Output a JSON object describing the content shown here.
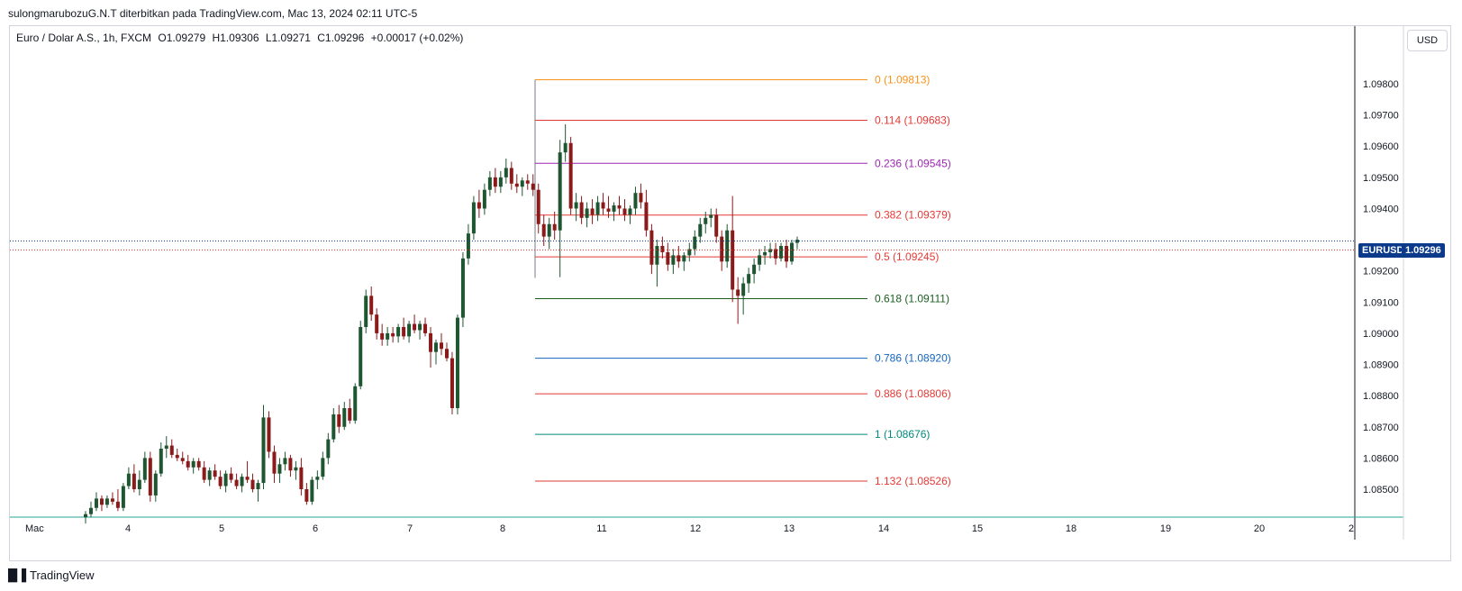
{
  "header": {
    "text": "sulongmarubozuG.N.T diterbitkan pada TradingView.com, Mac 13, 2024 02:11 UTC-5"
  },
  "legend": {
    "symbol": "Euro / Dolar A.S., 1h, FXCM",
    "open": "O1.09279",
    "high": "H1.09306",
    "low": "L1.09271",
    "close": "C1.09296",
    "change": "+0.00017 (+0.02%)"
  },
  "currency": "USD",
  "price_tag": {
    "name": "EURUSD",
    "price": "1.09296"
  },
  "footer": {
    "logo_mark": "█▐",
    "logo_text": "TradingView"
  },
  "colors": {
    "bull": "#1e5631",
    "bear": "#8b1a1a",
    "axis": "#131722",
    "frame": "#d1d4dc",
    "accent": "#0b3a8a"
  },
  "chart_data": {
    "type": "candlestick",
    "title": "",
    "xlabel": "",
    "ylabel": "",
    "ylim": [
      1.0842,
      1.0992
    ],
    "y_ticks": [
      "1.09800",
      "1.09700",
      "1.09600",
      "1.09500",
      "1.09400",
      "1.09200",
      "1.09100",
      "1.09000",
      "1.08900",
      "1.08800",
      "1.08700",
      "1.08600",
      "1.08500"
    ],
    "y_tick_values": [
      1.098,
      1.097,
      1.096,
      1.095,
      1.094,
      1.092,
      1.091,
      1.09,
      1.089,
      1.088,
      1.087,
      1.086,
      1.085
    ],
    "x_ticks": [
      "Mac",
      "4",
      "5",
      "6",
      "7",
      "8",
      "11",
      "12",
      "13",
      "14",
      "15",
      "18",
      "19",
      "20",
      "2"
    ],
    "current_price": 1.09296,
    "fibonacci": {
      "levels": [
        {
          "label": "0 (1.09813)",
          "value": 1.09813,
          "color": "#f7931a"
        },
        {
          "label": "0.114 (1.09683)",
          "value": 1.09683,
          "color": "#e53935"
        },
        {
          "label": "0.236 (1.09545)",
          "value": 1.09545,
          "color": "#9c27b0"
        },
        {
          "label": "0.382 (1.09379)",
          "value": 1.09379,
          "color": "#e53935"
        },
        {
          "label": "0.5 (1.09245)",
          "value": 1.09245,
          "color": "#e53935"
        },
        {
          "label": "0.618 (1.09111)",
          "value": 1.09111,
          "color": "#1b5e20"
        },
        {
          "label": "0.786 (1.08920)",
          "value": 1.0892,
          "color": "#1565c0"
        },
        {
          "label": "0.886 (1.08806)",
          "value": 1.08806,
          "color": "#e53935"
        },
        {
          "label": "1 (1.08676)",
          "value": 1.08676,
          "color": "#00897b"
        },
        {
          "label": "1.132 (1.08526)",
          "value": 1.08526,
          "color": "#e53935"
        }
      ]
    },
    "candles": [
      [
        1.0841,
        1.0843,
        1.0839,
        1.0842
      ],
      [
        1.0842,
        1.0846,
        1.0841,
        1.0844
      ],
      [
        1.0844,
        1.0849,
        1.0843,
        1.0847
      ],
      [
        1.0847,
        1.0848,
        1.0843,
        1.0845
      ],
      [
        1.0845,
        1.0848,
        1.0844,
        1.0847
      ],
      [
        1.0847,
        1.0849,
        1.0845,
        1.0846
      ],
      [
        1.0846,
        1.085,
        1.0843,
        1.0844
      ],
      [
        1.0844,
        1.0852,
        1.0843,
        1.0851
      ],
      [
        1.0851,
        1.0857,
        1.085,
        1.0855
      ],
      [
        1.0855,
        1.0858,
        1.0849,
        1.085
      ],
      [
        1.085,
        1.0856,
        1.0848,
        1.0853
      ],
      [
        1.0853,
        1.0862,
        1.0852,
        1.086
      ],
      [
        1.086,
        1.0862,
        1.0846,
        1.0848
      ],
      [
        1.0848,
        1.0856,
        1.0846,
        1.0855
      ],
      [
        1.0855,
        1.0865,
        1.0854,
        1.0863
      ],
      [
        1.0863,
        1.0867,
        1.086,
        1.0864
      ],
      [
        1.0864,
        1.0866,
        1.086,
        1.0861
      ],
      [
        1.0861,
        1.0863,
        1.0859,
        1.086
      ],
      [
        1.086,
        1.0862,
        1.0858,
        1.0859
      ],
      [
        1.0859,
        1.0861,
        1.0856,
        1.0857
      ],
      [
        1.0857,
        1.086,
        1.0855,
        1.0859
      ],
      [
        1.0859,
        1.086,
        1.0856,
        1.0857
      ],
      [
        1.0857,
        1.0859,
        1.0852,
        1.0853
      ],
      [
        1.0853,
        1.0857,
        1.0851,
        1.0856
      ],
      [
        1.0856,
        1.0858,
        1.0853,
        1.0854
      ],
      [
        1.0854,
        1.0856,
        1.085,
        1.0851
      ],
      [
        1.0851,
        1.0856,
        1.0849,
        1.0855
      ],
      [
        1.0855,
        1.0857,
        1.0852,
        1.0853
      ],
      [
        1.0853,
        1.0855,
        1.085,
        1.0851
      ],
      [
        1.0851,
        1.0855,
        1.0849,
        1.0854
      ],
      [
        1.0854,
        1.0859,
        1.0852,
        1.0853
      ],
      [
        1.0853,
        1.0855,
        1.0849,
        1.085
      ],
      [
        1.085,
        1.0853,
        1.0846,
        1.0852
      ],
      [
        1.0852,
        1.0877,
        1.085,
        1.0873
      ],
      [
        1.0873,
        1.0875,
        1.086,
        1.0862
      ],
      [
        1.0862,
        1.0864,
        1.0852,
        1.0855
      ],
      [
        1.0855,
        1.086,
        1.0852,
        1.0858
      ],
      [
        1.0858,
        1.0862,
        1.0856,
        1.086
      ],
      [
        1.086,
        1.0861,
        1.0854,
        1.0856
      ],
      [
        1.0856,
        1.0859,
        1.0853,
        1.0857
      ],
      [
        1.0857,
        1.086,
        1.0848,
        1.085
      ],
      [
        1.085,
        1.0852,
        1.0845,
        1.0846
      ],
      [
        1.0846,
        1.0854,
        1.0845,
        1.0853
      ],
      [
        1.0853,
        1.0856,
        1.085,
        1.0854
      ],
      [
        1.0854,
        1.0862,
        1.0853,
        1.086
      ],
      [
        1.086,
        1.0868,
        1.0858,
        1.0866
      ],
      [
        1.0866,
        1.0876,
        1.0865,
        1.0874
      ],
      [
        1.0874,
        1.0877,
        1.0868,
        1.087
      ],
      [
        1.087,
        1.0878,
        1.0869,
        1.0876
      ],
      [
        1.0876,
        1.0879,
        1.0871,
        1.0872
      ],
      [
        1.0872,
        1.0884,
        1.0871,
        1.0883
      ],
      [
        1.0883,
        1.0904,
        1.0882,
        1.0902
      ],
      [
        1.0902,
        1.0914,
        1.09,
        1.0912
      ],
      [
        1.0912,
        1.0915,
        1.0904,
        1.0906
      ],
      [
        1.0906,
        1.0908,
        1.0898,
        1.09
      ],
      [
        1.09,
        1.0903,
        1.0896,
        1.0898
      ],
      [
        1.0898,
        1.0902,
        1.0896,
        1.09
      ],
      [
        1.09,
        1.0902,
        1.0897,
        1.0899
      ],
      [
        1.0899,
        1.0903,
        1.0897,
        1.0902
      ],
      [
        1.0902,
        1.0905,
        1.0898,
        1.0899
      ],
      [
        1.0899,
        1.0904,
        1.0897,
        1.0903
      ],
      [
        1.0903,
        1.0906,
        1.09,
        1.0901
      ],
      [
        1.0901,
        1.0904,
        1.0898,
        1.0903
      ],
      [
        1.0903,
        1.0905,
        1.0899,
        1.09
      ],
      [
        1.09,
        1.0902,
        1.0889,
        1.0894
      ],
      [
        1.0894,
        1.0898,
        1.089,
        1.0897
      ],
      [
        1.0897,
        1.09,
        1.0893,
        1.0895
      ],
      [
        1.0895,
        1.0897,
        1.0891,
        1.0892
      ],
      [
        1.0892,
        1.0894,
        1.0874,
        1.0876
      ],
      [
        1.0876,
        1.0906,
        1.0874,
        1.0905
      ],
      [
        1.0905,
        1.0926,
        1.0902,
        1.0924
      ],
      [
        1.0924,
        1.0935,
        1.0922,
        1.0932
      ],
      [
        1.0932,
        1.0944,
        1.093,
        1.0942
      ],
      [
        1.0942,
        1.0946,
        1.0937,
        1.094
      ],
      [
        1.094,
        1.0948,
        1.0938,
        1.0946
      ],
      [
        1.0946,
        1.0952,
        1.0944,
        1.095
      ],
      [
        1.095,
        1.0953,
        1.0945,
        1.0947
      ],
      [
        1.0947,
        1.0952,
        1.0945,
        1.095
      ],
      [
        1.095,
        1.0956,
        1.0948,
        1.0953
      ],
      [
        1.0953,
        1.0955,
        1.0946,
        1.0948
      ],
      [
        1.0948,
        1.0951,
        1.0945,
        1.0947
      ],
      [
        1.0947,
        1.095,
        1.0944,
        1.0949
      ],
      [
        1.0949,
        1.0951,
        1.0946,
        1.0948
      ],
      [
        1.0948,
        1.0951,
        1.0944,
        1.0946
      ],
      [
        1.0946,
        1.0948,
        1.0932,
        1.0935
      ],
      [
        1.0935,
        1.0938,
        1.0928,
        1.0931
      ],
      [
        1.0931,
        1.0937,
        1.0927,
        1.0935
      ],
      [
        1.0935,
        1.0939,
        1.093,
        1.0933
      ],
      [
        1.0933,
        1.0962,
        1.0918,
        1.0958
      ],
      [
        1.0958,
        1.0967,
        1.0955,
        1.0961
      ],
      [
        1.0961,
        1.0963,
        1.0938,
        1.094
      ],
      [
        1.094,
        1.0945,
        1.0936,
        1.0942
      ],
      [
        1.0942,
        1.0944,
        1.0935,
        1.0937
      ],
      [
        1.0937,
        1.0942,
        1.0934,
        1.094
      ],
      [
        1.094,
        1.0943,
        1.0935,
        1.0938
      ],
      [
        1.0938,
        1.0944,
        1.0936,
        1.0942
      ],
      [
        1.0942,
        1.0945,
        1.0938,
        1.094
      ],
      [
        1.094,
        1.0944,
        1.0937,
        1.0939
      ],
      [
        1.0939,
        1.0942,
        1.0936,
        1.0941
      ],
      [
        1.0941,
        1.0944,
        1.0938,
        1.094
      ],
      [
        1.094,
        1.0943,
        1.0936,
        1.0938
      ],
      [
        1.0938,
        1.0941,
        1.0935,
        1.094
      ],
      [
        1.094,
        1.0947,
        1.0938,
        1.0945
      ],
      [
        1.0945,
        1.0948,
        1.094,
        1.0942
      ],
      [
        1.0942,
        1.0946,
        1.0931,
        1.0933
      ],
      [
        1.0933,
        1.0935,
        1.0919,
        1.0922
      ],
      [
        1.0922,
        1.093,
        1.0915,
        1.0928
      ],
      [
        1.0928,
        1.0931,
        1.0924,
        1.0926
      ],
      [
        1.0926,
        1.0929,
        1.092,
        1.0922
      ],
      [
        1.0922,
        1.0927,
        1.0919,
        1.0925
      ],
      [
        1.0925,
        1.0928,
        1.0921,
        1.0923
      ],
      [
        1.0923,
        1.0926,
        1.092,
        1.0925
      ],
      [
        1.0925,
        1.0929,
        1.0923,
        1.0927
      ],
      [
        1.0927,
        1.0933,
        1.0925,
        1.0931
      ],
      [
        1.0931,
        1.0937,
        1.0929,
        1.0935
      ],
      [
        1.0935,
        1.0939,
        1.0932,
        1.0937
      ],
      [
        1.0937,
        1.094,
        1.0934,
        1.0938
      ],
      [
        1.0938,
        1.094,
        1.0929,
        1.0931
      ],
      [
        1.0931,
        1.0933,
        1.092,
        1.0923
      ],
      [
        1.0923,
        1.0935,
        1.0921,
        1.0933
      ],
      [
        1.0933,
        1.0944,
        1.091,
        1.0914
      ],
      [
        1.0914,
        1.0918,
        1.0903,
        1.0912
      ],
      [
        1.0912,
        1.0918,
        1.0906,
        1.0916
      ],
      [
        1.0916,
        1.0921,
        1.0913,
        1.0919
      ],
      [
        1.0919,
        1.0924,
        1.0916,
        1.0922
      ],
      [
        1.0922,
        1.0927,
        1.092,
        1.0925
      ],
      [
        1.0925,
        1.0928,
        1.0922,
        1.0926
      ],
      [
        1.0926,
        1.0929,
        1.0924,
        1.0927
      ],
      [
        1.0927,
        1.0929,
        1.0922,
        1.0924
      ],
      [
        1.0924,
        1.0929,
        1.0923,
        1.0928
      ],
      [
        1.0928,
        1.093,
        1.0921,
        1.0923
      ],
      [
        1.0923,
        1.093,
        1.0922,
        1.0929
      ],
      [
        1.0929,
        1.0931,
        1.0927,
        1.093
      ]
    ]
  }
}
